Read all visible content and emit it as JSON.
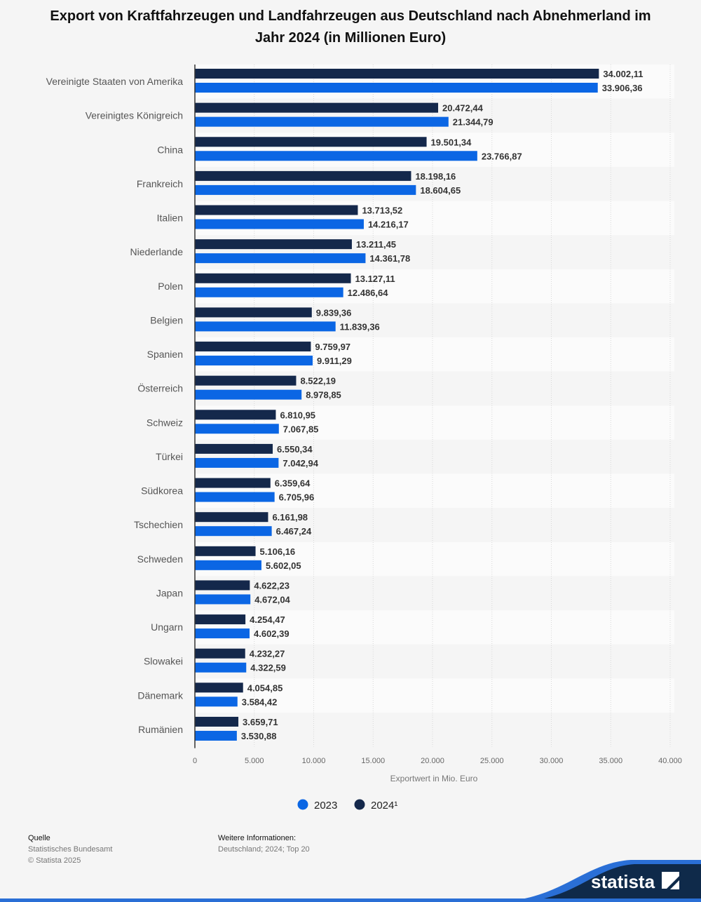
{
  "chart_data": {
    "type": "bar",
    "orientation": "horizontal",
    "title": "Export von Kraftfahrzeugen und Landfahrzeugen aus Deutschland nach Abnehmerland im Jahr 2024 (in Millionen Euro)",
    "xlabel": "Exportwert in Mio. Euro",
    "ylabel": "",
    "xlim": [
      0,
      40000
    ],
    "ticks": [
      0,
      5000,
      10000,
      15000,
      20000,
      25000,
      30000,
      35000,
      40000
    ],
    "tick_labels": [
      "0",
      "5.000",
      "10.000",
      "15.000",
      "20.000",
      "25.000",
      "30.000",
      "35.000",
      "40.000"
    ],
    "grid": true,
    "legend_position": "bottom",
    "categories": [
      "Vereinigte Staaten von Amerika",
      "Vereinigtes Königreich",
      "China",
      "Frankreich",
      "Italien",
      "Niederlande",
      "Polen",
      "Belgien",
      "Spanien",
      "Österreich",
      "Schweiz",
      "Türkei",
      "Südkorea",
      "Tschechien",
      "Schweden",
      "Japan",
      "Ungarn",
      "Slowakei",
      "Dänemark",
      "Rumänien"
    ],
    "series": [
      {
        "name": "2024¹",
        "color": "#14284b",
        "values": [
          34002.11,
          20472.44,
          19501.34,
          18198.16,
          13713.52,
          13211.45,
          13127.11,
          9839.36,
          9759.97,
          8522.19,
          6810.95,
          6550.34,
          6359.64,
          6161.98,
          5106.16,
          4622.23,
          4254.47,
          4232.27,
          4054.85,
          3659.71
        ],
        "labels": [
          "34.002,11",
          "20.472,44",
          "19.501,34",
          "18.198,16",
          "13.713,52",
          "13.211,45",
          "13.127,11",
          "9.839,36",
          "9.759,97",
          "8.522,19",
          "6.810,95",
          "6.550,34",
          "6.359,64",
          "6.161,98",
          "5.106,16",
          "4.622,23",
          "4.254,47",
          "4.232,27",
          "4.054,85",
          "3.659,71"
        ]
      },
      {
        "name": "2023",
        "color": "#0b66e4",
        "values": [
          33906.36,
          21344.79,
          23766.87,
          18604.65,
          14216.17,
          14361.78,
          12486.64,
          11839.36,
          9911.29,
          8978.85,
          7067.85,
          7042.94,
          6705.96,
          6467.24,
          5602.05,
          4672.04,
          4602.39,
          4322.59,
          3584.42,
          3530.88
        ],
        "labels": [
          "33.906,36",
          "21.344,79",
          "23.766,87",
          "18.604,65",
          "14.216,17",
          "14.361,78",
          "12.486,64",
          "11.839,36",
          "9.911,29",
          "8.978,85",
          "7.067,85",
          "7.042,94",
          "6.705,96",
          "6.467,24",
          "5.602,05",
          "4.672,04",
          "4.602,39",
          "4.322,59",
          "3.584,42",
          "3.530,88"
        ]
      }
    ],
    "legend_order": [
      "2023",
      "2024¹"
    ]
  },
  "footer": {
    "source_heading": "Quelle",
    "source": "Statistisches Bundesamt",
    "copyright": "© Statista 2025",
    "info_heading": "Weitere Informationen:",
    "info": "Deutschland; 2024; Top 20",
    "logo": "statista"
  }
}
